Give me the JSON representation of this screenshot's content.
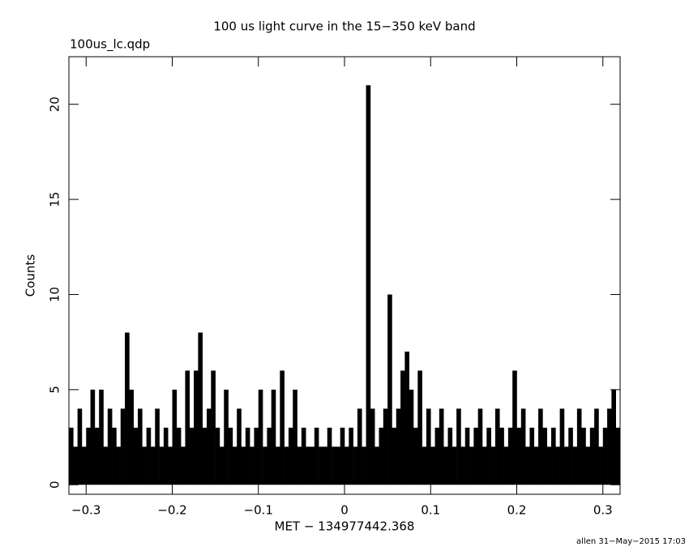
{
  "chart_data": {
    "type": "histogram",
    "title": "100 us light curve in the 15−350 keV band",
    "subtitle": "100us_lc.qdp",
    "xlabel": "MET − 134977442.368",
    "ylabel": "Counts",
    "footer": "allen 31−May−2015 17:03",
    "color": "#000000",
    "xlim": [
      -0.32,
      0.32
    ],
    "ylim": [
      -0.5,
      22.5
    ],
    "xticks": [
      {
        "value": -0.3,
        "label": "−0.3"
      },
      {
        "value": -0.2,
        "label": "−0.2"
      },
      {
        "value": -0.1,
        "label": "−0.1"
      },
      0,
      0.1,
      0.2,
      0.3
    ],
    "yticks": [
      0,
      5,
      10,
      15,
      20
    ],
    "bins": [
      -0.32,
      -0.315,
      -0.31,
      -0.305,
      -0.3,
      -0.295,
      -0.29,
      -0.285,
      -0.28,
      -0.275,
      -0.27,
      -0.265,
      -0.26,
      -0.255,
      -0.25,
      -0.245,
      -0.24,
      -0.235,
      -0.23,
      -0.225,
      -0.22,
      -0.215,
      -0.21,
      -0.205,
      -0.2,
      -0.195,
      -0.19,
      -0.185,
      -0.18,
      -0.175,
      -0.17,
      -0.165,
      -0.16,
      -0.155,
      -0.15,
      -0.145,
      -0.14,
      -0.135,
      -0.13,
      -0.125,
      -0.12,
      -0.115,
      -0.11,
      -0.105,
      -0.1,
      -0.095,
      -0.09,
      -0.085,
      -0.08,
      -0.075,
      -0.07,
      -0.065,
      -0.06,
      -0.055,
      -0.05,
      -0.045,
      -0.04,
      -0.035,
      -0.03,
      -0.025,
      -0.02,
      -0.015,
      -0.01,
      -0.005,
      0,
      0.005,
      0.01,
      0.015,
      0.02,
      0.025,
      0.03,
      0.035,
      0.04,
      0.045,
      0.05,
      0.055,
      0.06,
      0.065,
      0.07,
      0.075,
      0.08,
      0.085,
      0.09,
      0.095,
      0.1,
      0.105,
      0.11,
      0.115,
      0.12,
      0.125,
      0.13,
      0.135,
      0.14,
      0.145,
      0.15,
      0.155,
      0.16,
      0.165,
      0.17,
      0.175,
      0.18,
      0.185,
      0.19,
      0.195,
      0.2,
      0.205,
      0.21,
      0.215,
      0.22,
      0.225,
      0.23,
      0.235,
      0.24,
      0.245,
      0.25,
      0.255,
      0.26,
      0.265,
      0.27,
      0.275,
      0.28,
      0.285,
      0.29,
      0.295,
      0.3,
      0.305,
      0.31,
      0.315,
      0.32
    ],
    "values": [
      3,
      2,
      4,
      2,
      3,
      5,
      3,
      5,
      2,
      4,
      3,
      2,
      4,
      8,
      5,
      3,
      4,
      2,
      3,
      2,
      4,
      2,
      3,
      2,
      5,
      3,
      2,
      6,
      3,
      6,
      8,
      3,
      4,
      6,
      3,
      2,
      5,
      3,
      2,
      4,
      2,
      3,
      2,
      3,
      5,
      2,
      3,
      5,
      2,
      6,
      2,
      3,
      5,
      2,
      3,
      2,
      2,
      3,
      2,
      2,
      3,
      2,
      2,
      3,
      2,
      3,
      2,
      4,
      2,
      21,
      4,
      2,
      3,
      4,
      10,
      3,
      4,
      6,
      7,
      5,
      3,
      6,
      2,
      4,
      2,
      3,
      4,
      2,
      3,
      2,
      4,
      2,
      3,
      2,
      3,
      4,
      2,
      3,
      2,
      4,
      3,
      2,
      3,
      6,
      3,
      4,
      2,
      3,
      2,
      4,
      3,
      2,
      3,
      2,
      4,
      2,
      3,
      2,
      4,
      3,
      2,
      3,
      4,
      2,
      3,
      4,
      5,
      3
    ]
  }
}
